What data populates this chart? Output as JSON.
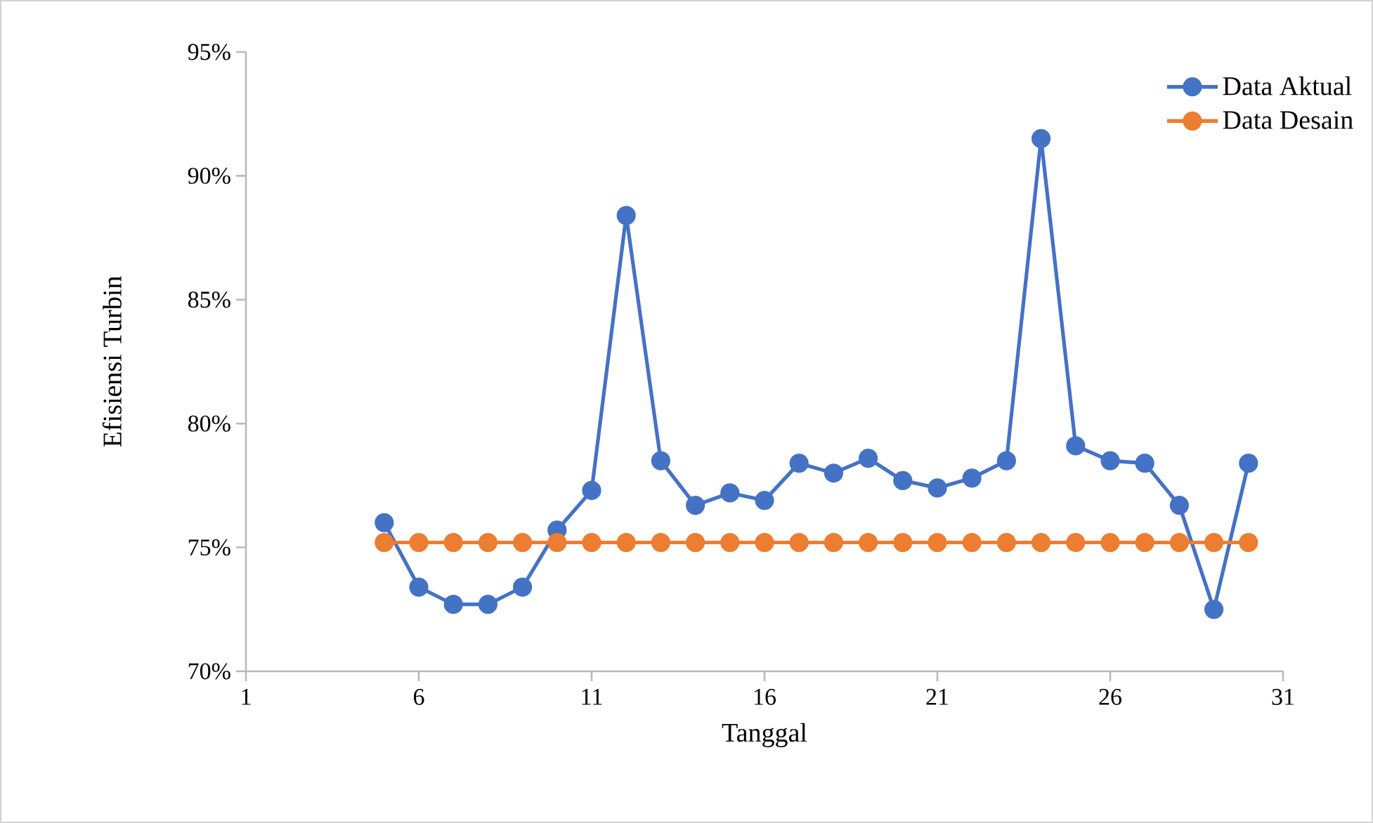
{
  "chart_data": {
    "type": "line",
    "xlabel": "Tanggal",
    "ylabel": "Efisiensi Turbin",
    "x": [
      5,
      6,
      7,
      8,
      9,
      10,
      11,
      12,
      13,
      14,
      15,
      16,
      17,
      18,
      19,
      20,
      21,
      22,
      23,
      24,
      25,
      26,
      27,
      28,
      29,
      30
    ],
    "series": [
      {
        "name": "Data Aktual",
        "color": "#4472c4",
        "values": [
          76.0,
          73.4,
          72.7,
          72.7,
          73.4,
          75.7,
          77.3,
          88.4,
          78.5,
          76.7,
          77.2,
          76.9,
          78.4,
          78.0,
          78.6,
          77.7,
          77.4,
          77.8,
          78.5,
          91.5,
          79.1,
          78.5,
          78.4,
          76.7,
          72.5,
          78.4
        ]
      },
      {
        "name": "Data Desain",
        "color": "#ed7d31",
        "values": [
          75.2,
          75.2,
          75.2,
          75.2,
          75.2,
          75.2,
          75.2,
          75.2,
          75.2,
          75.2,
          75.2,
          75.2,
          75.2,
          75.2,
          75.2,
          75.2,
          75.2,
          75.2,
          75.2,
          75.2,
          75.2,
          75.2,
          75.2,
          75.2,
          75.2,
          75.2
        ]
      }
    ],
    "xlim": [
      1,
      31
    ],
    "xticks": [
      1,
      6,
      11,
      16,
      21,
      26,
      31
    ],
    "ylim": [
      70,
      95
    ],
    "yticks": [
      {
        "value": 70,
        "label": "70%"
      },
      {
        "value": 75,
        "label": "75%"
      },
      {
        "value": 80,
        "label": "80%"
      },
      {
        "value": 85,
        "label": "85%"
      },
      {
        "value": 90,
        "label": "90%"
      },
      {
        "value": 95,
        "label": "95%"
      }
    ],
    "grid": false,
    "legend": "top right",
    "marker": "circle",
    "line_style": "solid"
  }
}
